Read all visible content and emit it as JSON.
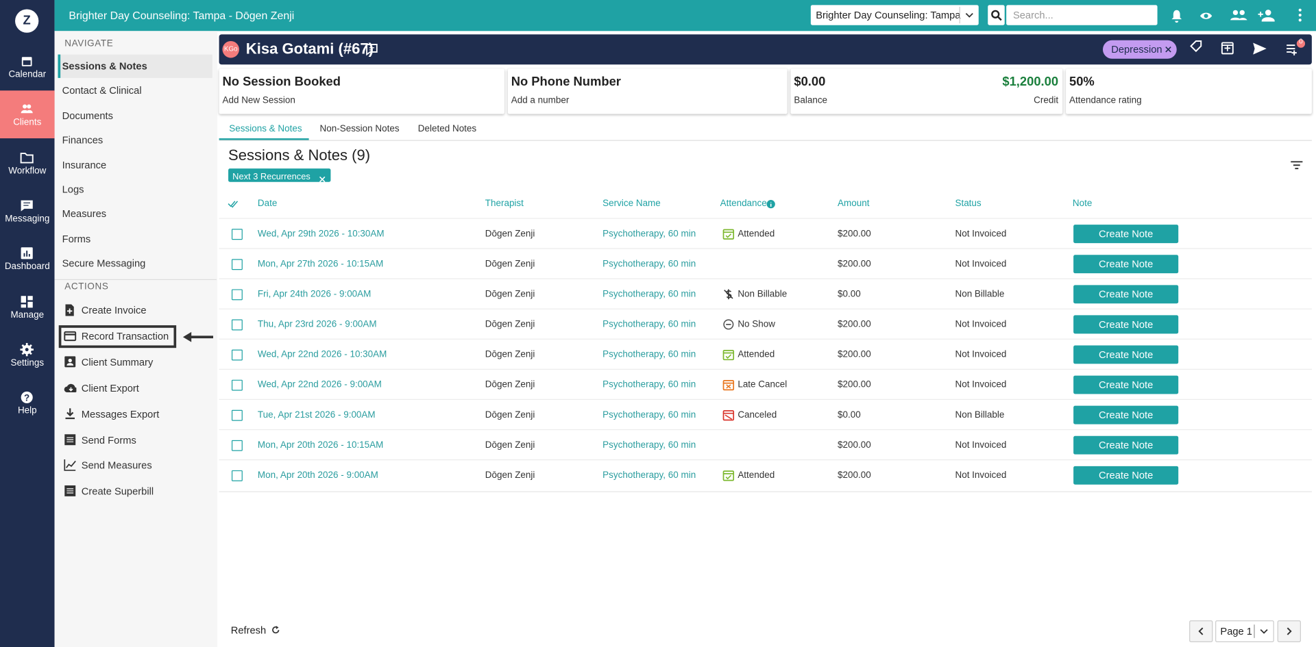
{
  "top_bar": {
    "org_title": "Brighter Day Counseling: Tampa - Dōgen Zenji",
    "location_select": "Brighter Day Counseling: Tampa",
    "search_placeholder": "Search..."
  },
  "rail": {
    "logo": "Z",
    "items": [
      "Calendar",
      "Clients",
      "Workflow",
      "Messaging",
      "Dashboard",
      "Manage",
      "Settings",
      "Help"
    ]
  },
  "navigate": {
    "heading": "NAVIGATE",
    "items": [
      "Sessions & Notes",
      "Contact & Clinical",
      "Documents",
      "Finances",
      "Insurance",
      "Logs",
      "Measures",
      "Forms",
      "Secure Messaging"
    ]
  },
  "actions": {
    "heading": "ACTIONS",
    "items": [
      "Create Invoice",
      "Record Transaction",
      "Client Summary",
      "Client Export",
      "Messages Export",
      "Send Forms",
      "Send Measures",
      "Create Superbill"
    ]
  },
  "client": {
    "initials": "KGo",
    "name": "Kisa Gotami (#67)",
    "tag": "Depression",
    "notification_count": "0"
  },
  "cards": [
    {
      "title": "No Session Booked",
      "subtitle": "Add New Session"
    },
    {
      "title": "No Phone Number",
      "subtitle": "Add a number"
    },
    {
      "title": "$0.00",
      "subtitle": "Balance",
      "right_title": "$1,200.00",
      "right_subtitle": "Credit"
    },
    {
      "title": "50%",
      "subtitle": "Attendance rating"
    }
  ],
  "tabs": [
    "Sessions & Notes",
    "Non-Session Notes",
    "Deleted Notes"
  ],
  "section": {
    "title": "Sessions & Notes (9)",
    "filter_chip": "Next 3 Recurrences"
  },
  "table": {
    "columns": [
      "Date",
      "Therapist",
      "Service Name",
      "Attendance",
      "Amount",
      "Status",
      "Note"
    ],
    "rows": [
      [
        "Wed, Apr 29th 2026 - 10:30AM",
        "Dōgen Zenji",
        "Psychotherapy, 60 min",
        "Attended",
        "$200.00",
        "Not Invoiced",
        "Create Note"
      ],
      [
        "Mon, Apr 27th 2026 - 10:15AM",
        "Dōgen Zenji",
        "Psychotherapy, 60 min",
        null,
        "$200.00",
        "Not Invoiced",
        "Create Note"
      ],
      [
        "Fri, Apr 24th 2026 - 9:00AM",
        "Dōgen Zenji",
        "Psychotherapy, 60 min",
        "Non Billable",
        "$0.00",
        "Non Billable",
        "Create Note"
      ],
      [
        "Thu, Apr 23rd 2026 - 9:00AM",
        "Dōgen Zenji",
        "Psychotherapy, 60 min",
        "No Show",
        "$200.00",
        "Not Invoiced",
        "Create Note"
      ],
      [
        "Wed, Apr 22nd 2026 - 10:30AM",
        "Dōgen Zenji",
        "Psychotherapy, 60 min",
        "Attended",
        "$200.00",
        "Not Invoiced",
        "Create Note"
      ],
      [
        "Wed, Apr 22nd 2026 - 9:00AM",
        "Dōgen Zenji",
        "Psychotherapy, 60 min",
        "Late Cancel",
        "$200.00",
        "Not Invoiced",
        "Create Note"
      ],
      [
        "Tue, Apr 21st 2026 - 9:00AM",
        "Dōgen Zenji",
        "Psychotherapy, 60 min",
        "Canceled",
        "$0.00",
        "Non Billable",
        "Create Note"
      ],
      [
        "Mon, Apr 20th 2026 - 10:15AM",
        "Dōgen Zenji",
        "Psychotherapy, 60 min",
        null,
        "$200.00",
        "Not Invoiced",
        "Create Note"
      ],
      [
        "Mon, Apr 20th 2026 - 9:00AM",
        "Dōgen Zenji",
        "Psychotherapy, 60 min",
        "Attended",
        "$200.00",
        "Not Invoiced",
        "Create Note"
      ]
    ]
  },
  "footer": {
    "refresh": "Refresh",
    "page": "Page 1"
  }
}
